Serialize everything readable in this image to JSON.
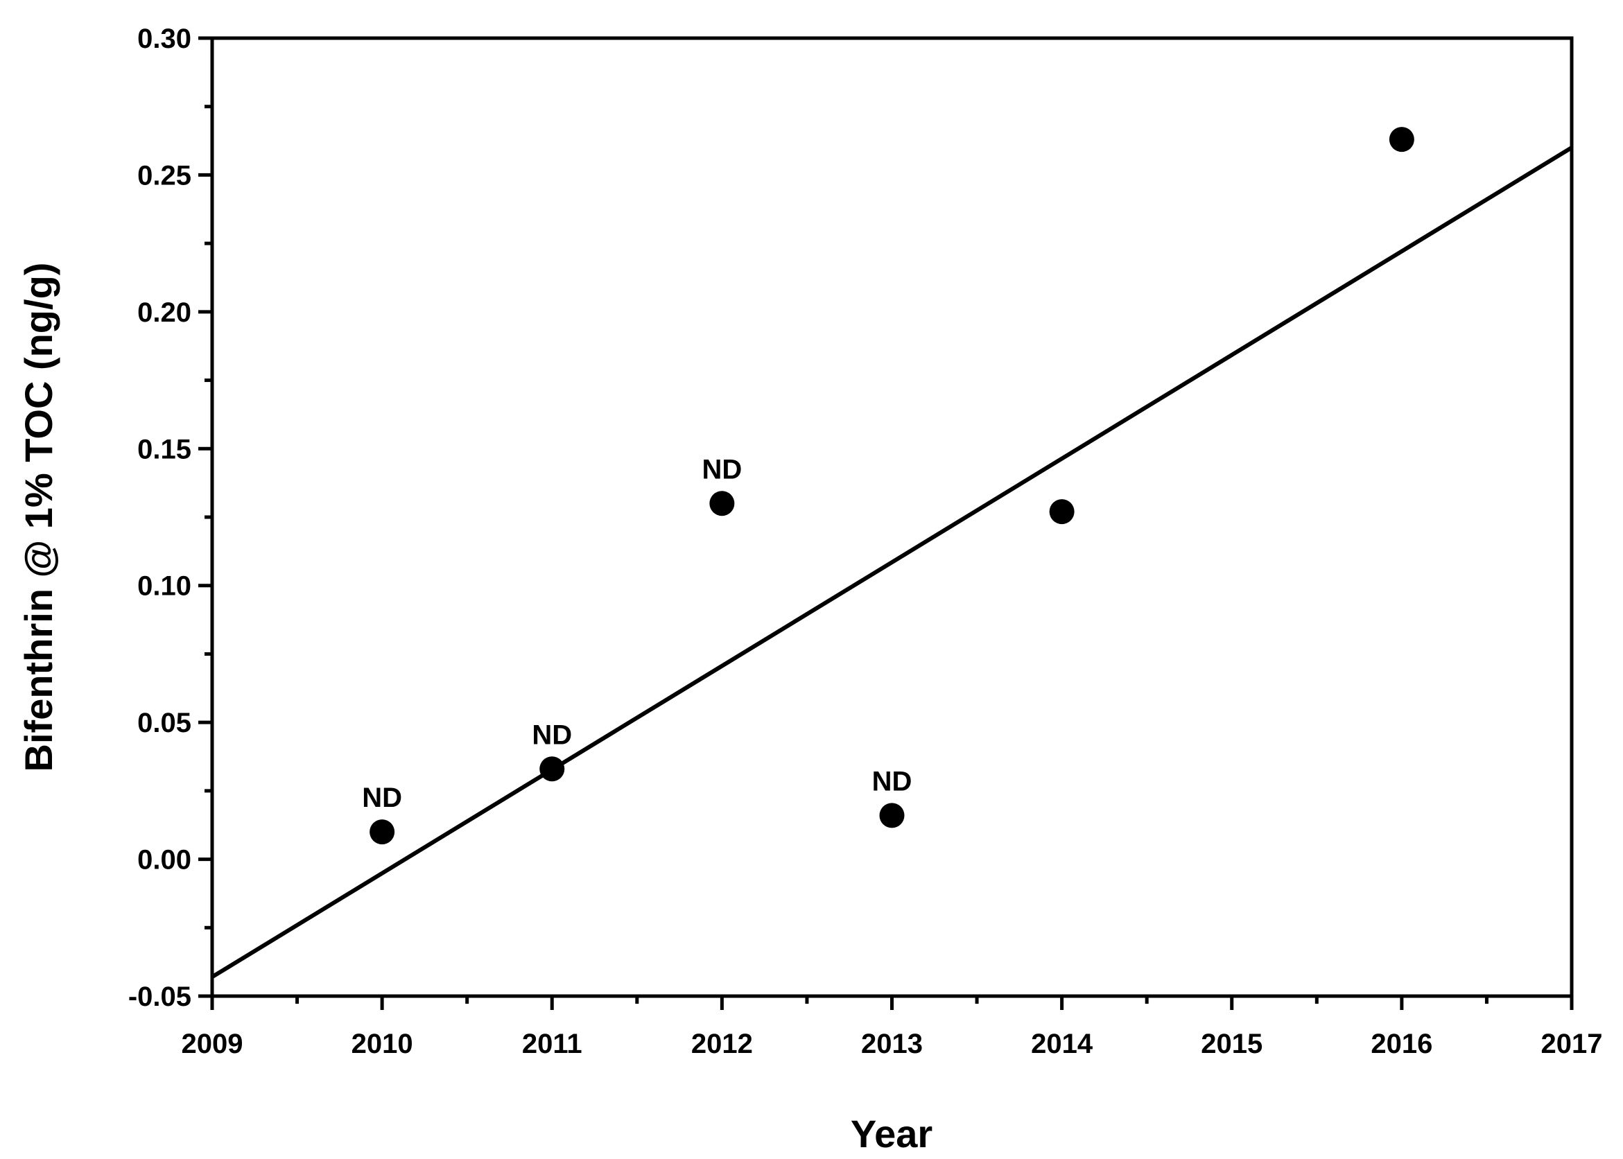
{
  "chart_data": {
    "type": "scatter",
    "x_label": "Year",
    "y_label": "Bifenthrin @ 1% TOC (ng/g)",
    "x": [
      2010,
      2011,
      2012,
      2013,
      2014,
      2016
    ],
    "series": [
      {
        "color": "#000000",
        "values": [
          0.01,
          0.033,
          0.13,
          0.016,
          0.127,
          0.263
        ],
        "point_labels": [
          "ND",
          "ND",
          "ND",
          "ND",
          null,
          null
        ]
      }
    ],
    "trendline": {
      "color": "#000000",
      "x": [
        2009,
        2017
      ],
      "values": [
        -0.043,
        0.26
      ]
    },
    "xlim": [
      2009,
      2017
    ],
    "xticks": [
      2009,
      2010,
      2011,
      2012,
      2013,
      2014,
      2015,
      2016,
      2017
    ],
    "xminor": [
      2009.5,
      2010.5,
      2011.5,
      2012.5,
      2013.5,
      2014.5,
      2015.5,
      2016.5
    ],
    "ylim": [
      -0.05,
      0.3
    ],
    "yticks": [
      -0.05,
      {
        "value": 0,
        "label": "0.00"
      },
      0.05,
      {
        "value": 0.1,
        "label": "0.10"
      },
      0.15,
      {
        "value": 0.2,
        "label": "0.20"
      },
      0.25,
      {
        "value": 0.3,
        "label": "0.30"
      }
    ],
    "yminor": [
      -0.025,
      0.025,
      0.075,
      0.125,
      0.175,
      0.225,
      0.275
    ]
  }
}
